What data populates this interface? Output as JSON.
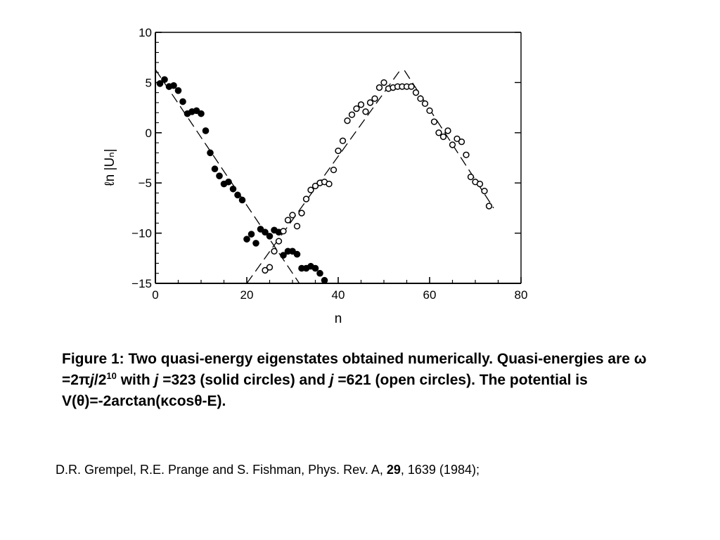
{
  "chart_data": {
    "type": "scatter",
    "xlabel": "n",
    "ylabel": "ℓn |Uₙ|",
    "xlim": [
      0,
      80
    ],
    "ylim": [
      -15,
      10
    ],
    "x_ticks": [
      0,
      20,
      40,
      60,
      80
    ],
    "y_ticks": [
      10,
      5,
      0,
      -5,
      -10,
      -15
    ],
    "x_tick_labels": [
      "0",
      "20",
      "40",
      "60",
      "80"
    ],
    "y_tick_labels": [
      "10",
      "5",
      "0",
      "−5",
      "−10",
      "−15"
    ],
    "grid": false,
    "series": [
      {
        "marker": "filled-circle",
        "points": [
          [
            1,
            4.9
          ],
          [
            2,
            5.3
          ],
          [
            3,
            4.6
          ],
          [
            4,
            4.7
          ],
          [
            5,
            4.2
          ],
          [
            6,
            3.1
          ],
          [
            7,
            1.9
          ],
          [
            8,
            2.1
          ],
          [
            9,
            2.2
          ],
          [
            10,
            1.9
          ],
          [
            11,
            0.2
          ],
          [
            12,
            -2.0
          ],
          [
            13,
            -3.6
          ],
          [
            14,
            -4.3
          ],
          [
            15,
            -5.1
          ],
          [
            16,
            -4.9
          ],
          [
            17,
            -5.6
          ],
          [
            18,
            -6.2
          ],
          [
            19,
            -6.7
          ],
          [
            20,
            -10.6
          ],
          [
            21,
            -10.1
          ],
          [
            22,
            -11.0
          ],
          [
            23,
            -9.6
          ],
          [
            24,
            -9.9
          ],
          [
            25,
            -10.3
          ],
          [
            26,
            -9.7
          ],
          [
            27,
            -9.9
          ],
          [
            28,
            -12.2
          ],
          [
            29,
            -11.8
          ],
          [
            30,
            -11.8
          ],
          [
            31,
            -12.1
          ],
          [
            32,
            -13.5
          ],
          [
            33,
            -13.5
          ],
          [
            34,
            -13.3
          ],
          [
            35,
            -13.5
          ],
          [
            36,
            -14.0
          ],
          [
            37,
            -14.7
          ]
        ]
      },
      {
        "marker": "open-circle",
        "points": [
          [
            24,
            -13.7
          ],
          [
            25,
            -13.4
          ],
          [
            26,
            -11.8
          ],
          [
            27,
            -10.8
          ],
          [
            28,
            -9.8
          ],
          [
            29,
            -8.7
          ],
          [
            30,
            -8.2
          ],
          [
            31,
            -9.3
          ],
          [
            32,
            -8.0
          ],
          [
            33,
            -6.6
          ],
          [
            34,
            -5.7
          ],
          [
            35,
            -5.3
          ],
          [
            36,
            -5.0
          ],
          [
            37,
            -4.9
          ],
          [
            38,
            -5.1
          ],
          [
            39,
            -3.7
          ],
          [
            40,
            -1.8
          ],
          [
            41,
            -0.8
          ],
          [
            42,
            1.2
          ],
          [
            43,
            1.8
          ],
          [
            44,
            2.4
          ],
          [
            45,
            2.8
          ],
          [
            46,
            2.1
          ],
          [
            47,
            3.0
          ],
          [
            48,
            3.4
          ],
          [
            49,
            4.5
          ],
          [
            50,
            5.0
          ],
          [
            51,
            4.4
          ],
          [
            52,
            4.5
          ],
          [
            53,
            4.6
          ],
          [
            54,
            4.6
          ],
          [
            55,
            4.6
          ],
          [
            56,
            4.6
          ],
          [
            57,
            4.0
          ],
          [
            58,
            3.4
          ],
          [
            59,
            2.9
          ],
          [
            60,
            2.2
          ],
          [
            61,
            1.1
          ],
          [
            62,
            0.0
          ],
          [
            63,
            -0.4
          ],
          [
            64,
            0.2
          ],
          [
            65,
            -1.2
          ],
          [
            66,
            -0.6
          ],
          [
            67,
            -0.9
          ],
          [
            68,
            -2.2
          ],
          [
            69,
            -4.4
          ],
          [
            70,
            -4.9
          ],
          [
            71,
            -5.1
          ],
          [
            72,
            -5.8
          ],
          [
            73,
            -7.3
          ]
        ]
      }
    ],
    "guides": [
      {
        "style": "dashed",
        "from": [
          0,
          6.3
        ],
        "to": [
          31.5,
          -15
        ]
      },
      {
        "style": "dashed",
        "from": [
          20,
          -15
        ],
        "to": [
          53.5,
          6.2
        ]
      },
      {
        "style": "dashed",
        "from": [
          54.5,
          6.2
        ],
        "to": [
          74,
          -7.5
        ]
      }
    ]
  },
  "caption": {
    "prefix": "Figure 1: Two quasi-energy eigenstates obtained numerically. Quasi-energies are ω =2π",
    "j1": "j",
    "frac": "/2",
    "exp": "10",
    "with": " with ",
    "j2": "j",
    "mid": " =323 (solid circles) and ",
    "j3": "j",
    "suffix": " =621 (open circles). The potential is V(θ)=-2arctan(κcosθ-E)."
  },
  "reference": {
    "before": "D.R. Grempel, R.E. Prange and S. Fishman, Phys. Rev. A, ",
    "volume": "29",
    "after": ", 1639 (1984);"
  }
}
